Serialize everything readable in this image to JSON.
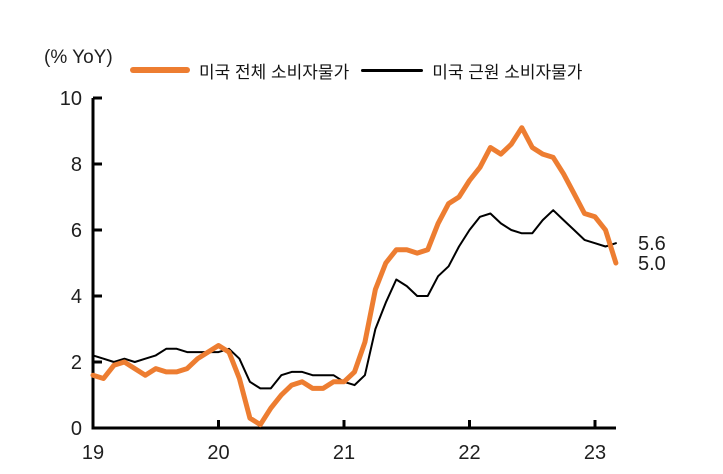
{
  "header": {
    "unit_label": "(% YoY)"
  },
  "legend": {
    "items": [
      {
        "label": "미국 전체 소비자물가",
        "color": "#ED7D31"
      },
      {
        "label": "미국 근원 소비자물가",
        "color": "#000000"
      }
    ]
  },
  "chart_data": {
    "type": "line",
    "title": "",
    "ylabel": "(% YoY)",
    "xlabel": "",
    "ylim": [
      0,
      10
    ],
    "y_ticks": [
      0,
      2,
      4,
      6,
      8,
      10
    ],
    "x_tick_labels": [
      "19",
      "20",
      "21",
      "22",
      "23"
    ],
    "x_start_month": "2019-01",
    "x_end_month": "2023-03",
    "grid": false,
    "legend_position": "top",
    "series": [
      {
        "name": "미국 전체 소비자물가",
        "color": "#ED7D31",
        "line_width": 5,
        "end_label": "5.0",
        "values": [
          1.6,
          1.5,
          1.9,
          2.0,
          1.8,
          1.6,
          1.8,
          1.7,
          1.7,
          1.8,
          2.1,
          2.3,
          2.5,
          2.3,
          1.5,
          0.3,
          0.1,
          0.6,
          1.0,
          1.3,
          1.4,
          1.2,
          1.2,
          1.4,
          1.4,
          1.7,
          2.6,
          4.2,
          5.0,
          5.4,
          5.4,
          5.3,
          5.4,
          6.2,
          6.8,
          7.0,
          7.5,
          7.9,
          8.5,
          8.3,
          8.6,
          9.1,
          8.5,
          8.3,
          8.2,
          7.7,
          7.1,
          6.5,
          6.4,
          6.0,
          5.0
        ]
      },
      {
        "name": "미국 근원 소비자물가",
        "color": "#000000",
        "line_width": 2,
        "end_label": "5.6",
        "values": [
          2.2,
          2.1,
          2.0,
          2.1,
          2.0,
          2.1,
          2.2,
          2.4,
          2.4,
          2.3,
          2.3,
          2.3,
          2.3,
          2.4,
          2.1,
          1.4,
          1.2,
          1.2,
          1.6,
          1.7,
          1.7,
          1.6,
          1.6,
          1.6,
          1.4,
          1.3,
          1.6,
          3.0,
          3.8,
          4.5,
          4.3,
          4.0,
          4.0,
          4.6,
          4.9,
          5.5,
          6.0,
          6.4,
          6.5,
          6.2,
          6.0,
          5.9,
          5.9,
          6.3,
          6.6,
          6.3,
          6.0,
          5.7,
          5.6,
          5.5,
          5.6
        ]
      }
    ]
  },
  "colors": {
    "background": "#FFFFFF",
    "axis": "#000000",
    "text": "#1F1F1F"
  }
}
